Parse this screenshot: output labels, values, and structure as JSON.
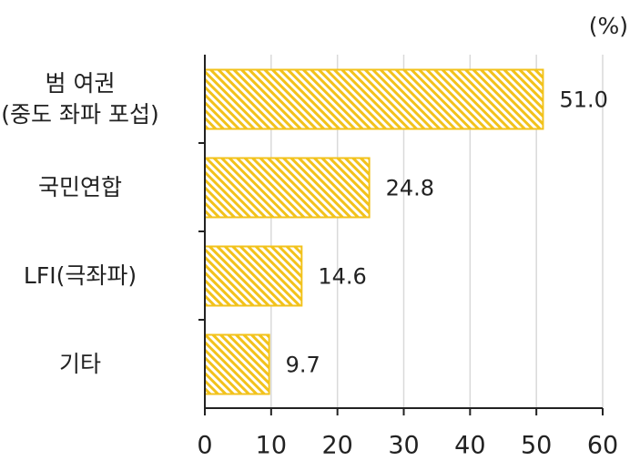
{
  "chart_data": {
    "type": "hbar",
    "unit": "(%)",
    "categories": [
      "범 여권\n(중도 좌파 포섭)",
      "국민연합",
      "LFI(극좌파)",
      "기타"
    ],
    "values": [
      51.0,
      24.8,
      14.6,
      9.7
    ],
    "value_labels": [
      "51.0",
      "24.8",
      "14.6",
      "9.7"
    ],
    "color": "#f2c21b",
    "xlim": [
      0,
      60
    ],
    "xticks": [
      0,
      10,
      20,
      30,
      40,
      50,
      60
    ],
    "grid": true
  }
}
